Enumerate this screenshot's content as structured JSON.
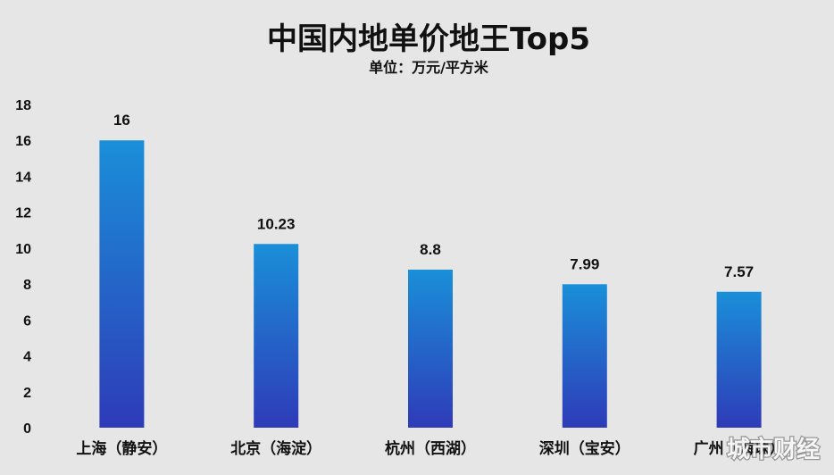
{
  "chart_data": {
    "type": "bar",
    "title": "中国内地单价地王Top5",
    "subtitle": "单位：万元/平方米",
    "categories": [
      "上海（静安）",
      "北京（海淀）",
      "杭州（西湖）",
      "深圳（宝安）",
      "广州（海珠）"
    ],
    "values": [
      16,
      10.23,
      8.8,
      7.99,
      7.57
    ],
    "data_labels": [
      "16",
      "10.23",
      "8.8",
      "7.99",
      "7.57"
    ],
    "ylim": [
      0,
      18
    ],
    "yticks": [
      0,
      2,
      4,
      6,
      8,
      10,
      12,
      14,
      16,
      18
    ],
    "xlabel": "",
    "ylabel": "",
    "grid": false,
    "bar_gradient": [
      "#1a8fd8",
      "#2e3bb8"
    ]
  },
  "watermark": "城市财经"
}
